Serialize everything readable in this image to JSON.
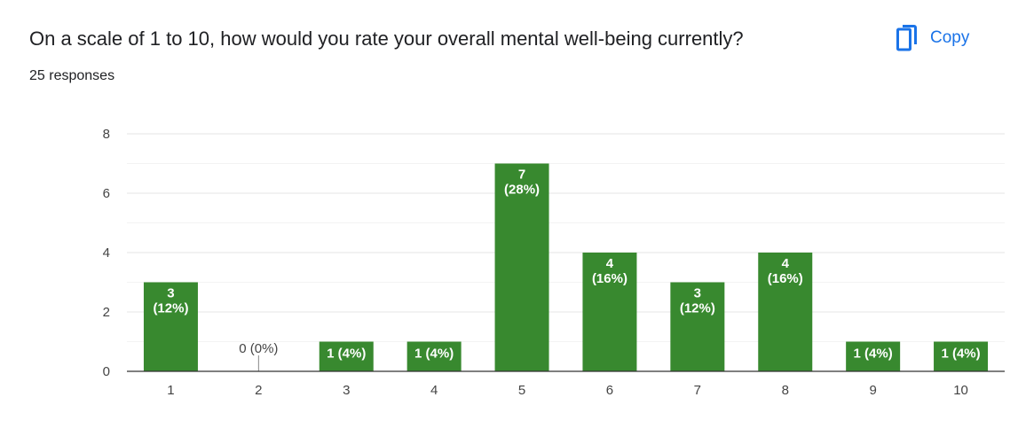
{
  "question": {
    "title": "On a scale of 1 to 10, how would you rate your overall mental well-being currently?",
    "responses": "25 responses"
  },
  "toolbar": {
    "copy_label": "Copy",
    "copy_icon": "copy-icon"
  },
  "colors": {
    "bar": "#38892f",
    "accent": "#1a73e8"
  },
  "chart_data": {
    "type": "bar",
    "categories": [
      "1",
      "2",
      "3",
      "4",
      "5",
      "6",
      "7",
      "8",
      "9",
      "10"
    ],
    "values": [
      3,
      0,
      1,
      1,
      7,
      4,
      3,
      4,
      1,
      1
    ],
    "data_labels": [
      "3 (12%)",
      "0 (0%)",
      "1 (4%)",
      "1 (4%)",
      "7 (28%)",
      "4 (16%)",
      "3 (12%)",
      "4 (16%)",
      "1 (4%)",
      "1 (4%)"
    ],
    "title": "",
    "xlabel": "",
    "ylabel": "",
    "ylim": [
      0,
      8
    ],
    "yticks": [
      "0",
      "2",
      "4",
      "6",
      "8"
    ],
    "grid": true,
    "legend": "none"
  }
}
